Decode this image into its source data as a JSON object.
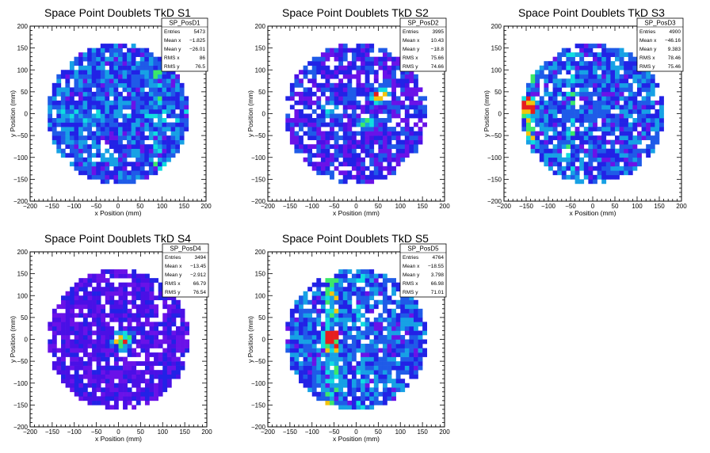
{
  "palette": [
    "#4a10e6",
    "#6a12e8",
    "#2222e6",
    "#1f5be8",
    "#17a1e5",
    "#10dde0",
    "#3be86a",
    "#f2c40d",
    "#e61e1e"
  ],
  "chart_data": [
    {
      "type": "heatmap",
      "title": "Space Point Doublets TkD S1",
      "histname": "SP_PosD1",
      "stats": [
        [
          "Entries",
          "5473"
        ],
        [
          "Mean x",
          "-1.825"
        ],
        [
          "Mean y",
          "-26.01"
        ],
        [
          "RMS x",
          "86"
        ],
        [
          "RMS y",
          "76.5"
        ]
      ],
      "xlabel": "x Position (mm)",
      "ylabel": "y Position (mm)",
      "xlim": [
        -200,
        200
      ],
      "ylim": [
        -200,
        200
      ],
      "xticks": [
        "-200",
        "-150",
        "-100",
        "-50",
        "0",
        "50",
        "100",
        "150",
        "200"
      ],
      "yticks": [
        "-200",
        "-150",
        "-100",
        "-50",
        "0",
        "50",
        "100",
        "150",
        "200"
      ],
      "disk_radius": 160,
      "bins": 40,
      "occupancy": 0.92,
      "base_level": 2,
      "features": [
        {
          "kind": "vband",
          "x": 90,
          "width": 14,
          "boost": 2
        },
        {
          "kind": "hband",
          "y": -5,
          "width": 25,
          "boost": 1
        },
        {
          "kind": "hotspot",
          "x": 120,
          "y": -125,
          "boost": 3
        }
      ]
    },
    {
      "type": "heatmap",
      "title": "Space Point Doublets TkD S2",
      "histname": "SP_PosD2",
      "stats": [
        [
          "Entries",
          "3995"
        ],
        [
          "Mean x",
          "10.43"
        ],
        [
          "Mean y",
          "-18.8"
        ],
        [
          "RMS x",
          "75.66"
        ],
        [
          "RMS y",
          "74.66"
        ]
      ],
      "xlabel": "x Position (mm)",
      "ylabel": "y Position (mm)",
      "xlim": [
        -200,
        200
      ],
      "ylim": [
        -200,
        200
      ],
      "xticks": [
        "-200",
        "-150",
        "-100",
        "-50",
        "0",
        "50",
        "100",
        "150",
        "200"
      ],
      "yticks": [
        "-200",
        "-150",
        "-100",
        "-50",
        "0",
        "50",
        "100",
        "150",
        "200"
      ],
      "disk_radius": 160,
      "bins": 40,
      "occupancy": 0.8,
      "base_level": 1,
      "features": [
        {
          "kind": "hotspot",
          "x": 55,
          "y": 40,
          "boost": 5
        },
        {
          "kind": "hotspot",
          "x": 25,
          "y": -20,
          "boost": 3
        },
        {
          "kind": "hotspot",
          "x": -60,
          "y": 5,
          "boost": 2
        }
      ]
    },
    {
      "type": "heatmap",
      "title": "Space Point Doublets TkD S3",
      "histname": "SP_PosD3",
      "stats": [
        [
          "Entries",
          "4900"
        ],
        [
          "Mean x",
          "-46.16"
        ],
        [
          "Mean y",
          "9.383"
        ],
        [
          "RMS x",
          "78.46"
        ],
        [
          "RMS y",
          "75.46"
        ]
      ],
      "xlabel": "x Position (mm)",
      "ylabel": "y Position (mm)",
      "xlim": [
        -200,
        200
      ],
      "ylim": [
        -200,
        200
      ],
      "xticks": [
        "-200",
        "-150",
        "-100",
        "-50",
        "0",
        "50",
        "100",
        "150",
        "200"
      ],
      "yticks": [
        "-200",
        "-150",
        "-100",
        "-50",
        "0",
        "50",
        "100",
        "150",
        "200"
      ],
      "disk_radius": 160,
      "bins": 40,
      "occupancy": 0.86,
      "base_level": 2,
      "features": [
        {
          "kind": "vband",
          "x": -140,
          "width": 20,
          "boost": 3
        },
        {
          "kind": "vband",
          "x": -50,
          "width": 8,
          "boost": 2
        },
        {
          "kind": "hotspot",
          "x": -155,
          "y": 15,
          "boost": 5
        }
      ]
    },
    {
      "type": "heatmap",
      "title": "Space Point Doublets TkD S4",
      "histname": "SP_PosD4",
      "stats": [
        [
          "Entries",
          "3494"
        ],
        [
          "Mean x",
          "-13.45"
        ],
        [
          "Mean y",
          "-2.912"
        ],
        [
          "RMS x",
          "66.79"
        ],
        [
          "RMS y",
          "76.54"
        ]
      ],
      "xlabel": "x Position (mm)",
      "ylabel": "y Position (mm)",
      "xlim": [
        -200,
        200
      ],
      "ylim": [
        -200,
        200
      ],
      "xticks": [
        "-200",
        "-150",
        "-100",
        "-50",
        "0",
        "50",
        "100",
        "150",
        "200"
      ],
      "yticks": [
        "-200",
        "-150",
        "-100",
        "-50",
        "0",
        "50",
        "100",
        "150",
        "200"
      ],
      "disk_radius": 160,
      "bins": 40,
      "occupancy": 0.84,
      "base_level": 0,
      "features": [
        {
          "kind": "hotspot",
          "x": 5,
          "y": -5,
          "boost": 5
        },
        {
          "kind": "hotspot",
          "x": 15,
          "y": 5,
          "boost": 3
        }
      ]
    },
    {
      "type": "heatmap",
      "title": "Space Point Doublets TkD S5",
      "histname": "SP_PosD5",
      "stats": [
        [
          "Entries",
          "4764"
        ],
        [
          "Mean x",
          "-18.55"
        ],
        [
          "Mean y",
          "3.798"
        ],
        [
          "RMS x",
          "66.98"
        ],
        [
          "RMS y",
          "71.01"
        ]
      ],
      "xlabel": "x Position (mm)",
      "ylabel": "y Position (mm)",
      "xlim": [
        -200,
        200
      ],
      "ylim": [
        -200,
        200
      ],
      "xticks": [
        "-200",
        "-150",
        "-100",
        "-50",
        "0",
        "50",
        "100",
        "150",
        "200"
      ],
      "yticks": [
        "-200",
        "-150",
        "-100",
        "-50",
        "0",
        "50",
        "100",
        "150",
        "200"
      ],
      "disk_radius": 160,
      "bins": 40,
      "occupancy": 0.87,
      "base_level": 2,
      "features": [
        {
          "kind": "vband",
          "x": -55,
          "width": 22,
          "boost": 3
        },
        {
          "kind": "hotspot",
          "x": -60,
          "y": 0,
          "boost": 6
        },
        {
          "kind": "vband",
          "x": 10,
          "width": 8,
          "boost": 1
        }
      ]
    }
  ]
}
